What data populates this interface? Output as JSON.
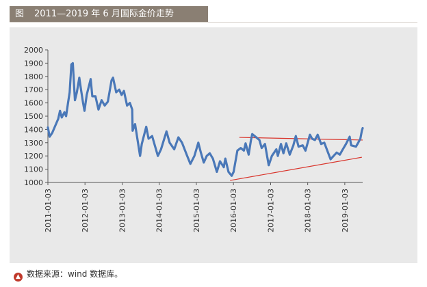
{
  "title": {
    "tag": "图",
    "text": "2011—2019 年 6 月国际金价走势"
  },
  "source": {
    "text": "数据来源：wind 数据库。"
  },
  "colors": {
    "series": "#4a78b8",
    "trend": "#d9342b",
    "title_bg": "#8a7f73",
    "panel_bg": "#e9e9e9"
  },
  "chart_data": {
    "type": "line",
    "title": "",
    "xlabel": "",
    "ylabel": "",
    "ylim": [
      1000,
      2000
    ],
    "yticks": [
      1000,
      1100,
      1200,
      1300,
      1400,
      1500,
      1600,
      1700,
      1800,
      1900,
      2000
    ],
    "xlim": [
      "2011-01-03",
      "2019-06-28"
    ],
    "xticks": [
      "2011-01-03",
      "2012-01-03",
      "2013-01-03",
      "2014-01-03",
      "2015-01-03",
      "2016-01-03",
      "2017-01-03",
      "2018-01-03",
      "2019-01-03"
    ],
    "series": [
      {
        "points": [
          [
            "2011-01-03",
            1415
          ],
          [
            "2011-01-20",
            1345
          ],
          [
            "2011-02-15",
            1375
          ],
          [
            "2011-03-15",
            1425
          ],
          [
            "2011-04-15",
            1480
          ],
          [
            "2011-05-02",
            1540
          ],
          [
            "2011-05-20",
            1490
          ],
          [
            "2011-06-15",
            1530
          ],
          [
            "2011-07-01",
            1500
          ],
          [
            "2011-07-20",
            1600
          ],
          [
            "2011-08-05",
            1680
          ],
          [
            "2011-08-22",
            1890
          ],
          [
            "2011-09-05",
            1900
          ],
          [
            "2011-09-26",
            1620
          ],
          [
            "2011-10-15",
            1680
          ],
          [
            "2011-11-08",
            1790
          ],
          [
            "2011-11-25",
            1700
          ],
          [
            "2011-12-15",
            1600
          ],
          [
            "2011-12-29",
            1540
          ],
          [
            "2012-01-20",
            1660
          ],
          [
            "2012-02-28",
            1780
          ],
          [
            "2012-03-15",
            1650
          ],
          [
            "2012-04-15",
            1650
          ],
          [
            "2012-05-15",
            1550
          ],
          [
            "2012-06-15",
            1620
          ],
          [
            "2012-07-15",
            1580
          ],
          [
            "2012-08-15",
            1610
          ],
          [
            "2012-09-20",
            1770
          ],
          [
            "2012-10-05",
            1790
          ],
          [
            "2012-11-05",
            1680
          ],
          [
            "2012-12-05",
            1700
          ],
          [
            "2012-12-28",
            1660
          ],
          [
            "2013-01-20",
            1690
          ],
          [
            "2013-02-20",
            1580
          ],
          [
            "2013-03-20",
            1600
          ],
          [
            "2013-04-12",
            1550
          ],
          [
            "2013-04-16",
            1390
          ],
          [
            "2013-05-10",
            1440
          ],
          [
            "2013-06-28",
            1200
          ],
          [
            "2013-07-15",
            1290
          ],
          [
            "2013-08-28",
            1420
          ],
          [
            "2013-09-20",
            1330
          ],
          [
            "2013-10-25",
            1350
          ],
          [
            "2013-12-20",
            1200
          ],
          [
            "2014-01-20",
            1250
          ],
          [
            "2014-03-15",
            1385
          ],
          [
            "2014-04-15",
            1300
          ],
          [
            "2014-05-30",
            1250
          ],
          [
            "2014-07-10",
            1340
          ],
          [
            "2014-08-15",
            1300
          ],
          [
            "2014-09-30",
            1210
          ],
          [
            "2014-11-05",
            1140
          ],
          [
            "2014-12-15",
            1200
          ],
          [
            "2015-01-22",
            1300
          ],
          [
            "2015-02-15",
            1230
          ],
          [
            "2015-03-17",
            1150
          ],
          [
            "2015-04-15",
            1200
          ],
          [
            "2015-05-15",
            1220
          ],
          [
            "2015-06-15",
            1180
          ],
          [
            "2015-07-24",
            1080
          ],
          [
            "2015-08-24",
            1160
          ],
          [
            "2015-09-30",
            1115
          ],
          [
            "2015-10-15",
            1180
          ],
          [
            "2015-11-15",
            1080
          ],
          [
            "2015-12-17",
            1050
          ],
          [
            "2016-01-05",
            1080
          ],
          [
            "2016-02-11",
            1240
          ],
          [
            "2016-03-15",
            1260
          ],
          [
            "2016-04-15",
            1240
          ],
          [
            "2016-05-02",
            1295
          ],
          [
            "2016-06-01",
            1210
          ],
          [
            "2016-06-24",
            1320
          ],
          [
            "2016-07-06",
            1365
          ],
          [
            "2016-08-15",
            1340
          ],
          [
            "2016-09-15",
            1320
          ],
          [
            "2016-10-07",
            1260
          ],
          [
            "2016-11-08",
            1290
          ],
          [
            "2016-12-15",
            1130
          ],
          [
            "2017-01-15",
            1200
          ],
          [
            "2017-02-28",
            1250
          ],
          [
            "2017-03-15",
            1200
          ],
          [
            "2017-04-15",
            1290
          ],
          [
            "2017-05-09",
            1220
          ],
          [
            "2017-06-06",
            1295
          ],
          [
            "2017-07-10",
            1210
          ],
          [
            "2017-08-15",
            1280
          ],
          [
            "2017-09-08",
            1350
          ],
          [
            "2017-10-05",
            1270
          ],
          [
            "2017-11-15",
            1280
          ],
          [
            "2017-12-12",
            1240
          ],
          [
            "2018-01-25",
            1360
          ],
          [
            "2018-02-15",
            1330
          ],
          [
            "2018-03-15",
            1320
          ],
          [
            "2018-04-11",
            1360
          ],
          [
            "2018-05-15",
            1290
          ],
          [
            "2018-06-15",
            1300
          ],
          [
            "2018-07-15",
            1240
          ],
          [
            "2018-08-16",
            1175
          ],
          [
            "2018-09-15",
            1200
          ],
          [
            "2018-10-15",
            1225
          ],
          [
            "2018-11-15",
            1210
          ],
          [
            "2018-12-15",
            1250
          ],
          [
            "2019-01-15",
            1290
          ],
          [
            "2019-02-20",
            1345
          ],
          [
            "2019-03-07",
            1280
          ],
          [
            "2019-04-23",
            1270
          ],
          [
            "2019-05-15",
            1300
          ],
          [
            "2019-06-05",
            1330
          ],
          [
            "2019-06-20",
            1390
          ],
          [
            "2019-06-28",
            1410
          ]
        ]
      }
    ],
    "trendlines": [
      {
        "from": [
          "2016-03-01",
          1340
        ],
        "to": [
          "2019-06-28",
          1320
        ]
      },
      {
        "from": [
          "2015-12-01",
          1015
        ],
        "to": [
          "2019-06-20",
          1190
        ]
      }
    ],
    "grid": false,
    "legend": "none"
  }
}
